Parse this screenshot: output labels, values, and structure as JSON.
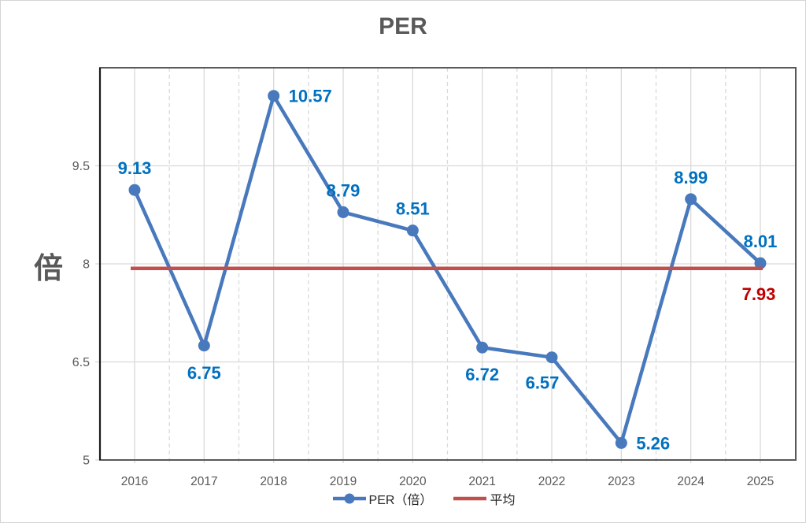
{
  "chart_data": {
    "type": "line",
    "title": "PER",
    "ylabel": "倍",
    "categories": [
      "2016",
      "2017",
      "2018",
      "2019",
      "2020",
      "2021",
      "2022",
      "2023",
      "2024",
      "2025"
    ],
    "series": [
      {
        "name": "PER（倍）",
        "type": "line",
        "color": "#4879BD",
        "label_color": "#0070C0",
        "values": [
          9.13,
          6.75,
          10.57,
          8.79,
          8.51,
          6.72,
          6.57,
          5.26,
          8.99,
          8.01
        ],
        "label_positions": [
          "above",
          "below",
          "right",
          "above",
          "above",
          "below",
          "below-left",
          "right",
          "above",
          "above"
        ]
      },
      {
        "name": "平均",
        "type": "hline",
        "color": "#C0504D",
        "label_color": "#C00000",
        "value": 7.93,
        "label": "7.93",
        "label_position": "below-right-end"
      }
    ],
    "ylim": [
      5,
      11
    ],
    "y_ticks": [
      5,
      6.5,
      8,
      9.5
    ],
    "y_tick_labels": [
      "5",
      "6.5",
      "8",
      "9.5"
    ],
    "grid": {
      "horizontal": "solid",
      "vertical_major": "solid",
      "vertical_minor": "dashed",
      "color": "#D9D9D9"
    },
    "legend_position": "bottom",
    "colors": {
      "plot_border": "#595959",
      "y_axis_line": "#1a1a1a",
      "tick_text": "#595959",
      "title_text": "#595959",
      "legend_text": "#262626"
    }
  }
}
